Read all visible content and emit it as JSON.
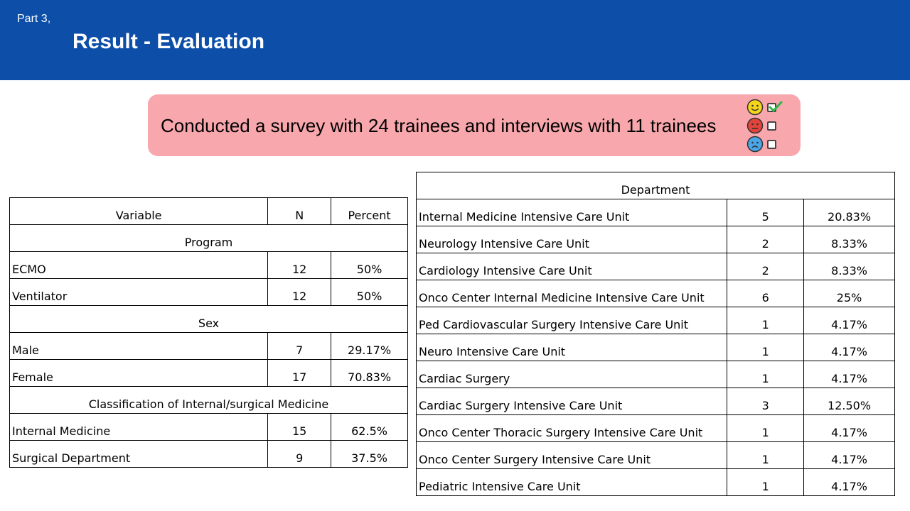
{
  "header": {
    "part": "Part 3,",
    "title": "Result - Evaluation"
  },
  "banner": {
    "text": "Conducted a survey with 24 trainees and interviews with 11 trainees",
    "colors": {
      "background": "#f8a7ad",
      "happy": "#f5d51c",
      "angry": "#e0443a",
      "sad": "#4aa6e6",
      "check": "#2ab84a"
    }
  },
  "variables_table": {
    "headers": [
      "Variable",
      "N",
      "Percent"
    ],
    "sections": [
      {
        "title": "Program",
        "rows": [
          [
            "ECMO",
            "12",
            "50%"
          ],
          [
            "Ventilator",
            "12",
            "50%"
          ]
        ]
      },
      {
        "title": "Sex",
        "rows": [
          [
            "Male",
            "7",
            "29.17%"
          ],
          [
            "Female",
            "17",
            "70.83%"
          ]
        ]
      },
      {
        "title": "Classification of Internal/surgical Medicine",
        "rows": [
          [
            "Internal Medicine",
            "15",
            "62.5%"
          ],
          [
            "Surgical Department",
            "9",
            "37.5%"
          ]
        ]
      }
    ]
  },
  "department_table": {
    "title": "Department",
    "rows": [
      [
        "Internal Medicine Intensive Care Unit",
        "5",
        "20.83%"
      ],
      [
        "Neurology Intensive Care Unit",
        "2",
        "8.33%"
      ],
      [
        "Cardiology Intensive Care Unit",
        "2",
        "8.33%"
      ],
      [
        "Onco Center Internal Medicine Intensive Care Unit",
        "6",
        "25%"
      ],
      [
        "Ped Cardiovascular Surgery Intensive Care Unit",
        "1",
        "4.17%"
      ],
      [
        "Neuro Intensive Care Unit",
        "1",
        "4.17%"
      ],
      [
        "Cardiac Surgery",
        "1",
        "4.17%"
      ],
      [
        "Cardiac Surgery Intensive Care Unit",
        "3",
        "12.50%"
      ],
      [
        "Onco Center Thoracic Surgery Intensive Care Unit",
        "1",
        "4.17%"
      ],
      [
        "Onco Center Surgery Intensive Care Unit",
        "1",
        "4.17%"
      ],
      [
        "Pediatric Intensive Care Unit",
        "1",
        "4.17%"
      ]
    ]
  }
}
